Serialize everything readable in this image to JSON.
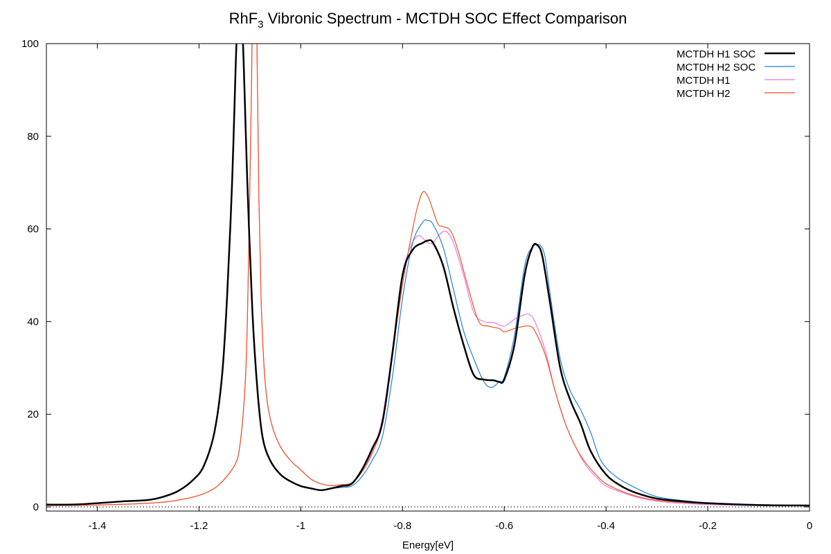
{
  "chart_data": {
    "type": "line",
    "title": "RhF",
    "title_subscript": "3",
    "title_rest": " Vibronic Spectrum - MCTDH SOC Effect Comparison",
    "xlabel": "Energy[eV]",
    "ylabel": "",
    "xlim": [
      -1.5,
      0
    ],
    "ylim": [
      0,
      100
    ],
    "xticks": [
      -1.4,
      -1.2,
      -1,
      -0.8,
      -0.6,
      -0.4,
      -0.2,
      0
    ],
    "xtick_labels": [
      "-1.4",
      "-1.2",
      "-1",
      "-0.8",
      "-0.6",
      "-0.4",
      "-0.2",
      "0"
    ],
    "yticks": [
      0,
      20,
      40,
      60,
      80,
      100
    ],
    "ytick_labels": [
      "0",
      "20",
      "40",
      "60",
      "80",
      "100"
    ],
    "zero_line": "dotted",
    "grid": false,
    "legend_position": "top-right",
    "series": [
      {
        "name": "MCTDH H1 SOC",
        "color": "#000000",
        "width": 2.5,
        "points": [
          [
            -1.5,
            0.5
          ],
          [
            -1.45,
            0.5
          ],
          [
            -1.4,
            0.8
          ],
          [
            -1.35,
            1.2
          ],
          [
            -1.3,
            1.5
          ],
          [
            -1.27,
            2.2
          ],
          [
            -1.24,
            3.5
          ],
          [
            -1.21,
            6
          ],
          [
            -1.19,
            9
          ],
          [
            -1.17,
            16
          ],
          [
            -1.155,
            28
          ],
          [
            -1.145,
            45
          ],
          [
            -1.135,
            70
          ],
          [
            -1.128,
            95
          ],
          [
            -1.122,
            112
          ],
          [
            -1.118,
            112
          ],
          [
            -1.112,
            95
          ],
          [
            -1.105,
            70
          ],
          [
            -1.095,
            42
          ],
          [
            -1.085,
            25
          ],
          [
            -1.075,
            15
          ],
          [
            -1.06,
            10
          ],
          [
            -1.04,
            7
          ],
          [
            -1.02,
            5.5
          ],
          [
            -1,
            4.5
          ],
          [
            -0.98,
            4
          ],
          [
            -0.96,
            3.6
          ],
          [
            -0.94,
            4
          ],
          [
            -0.92,
            4.5
          ],
          [
            -0.9,
            5
          ],
          [
            -0.88,
            8
          ],
          [
            -0.86,
            12.5
          ],
          [
            -0.84,
            18
          ],
          [
            -0.82,
            33
          ],
          [
            -0.8,
            50
          ],
          [
            -0.78,
            55.5
          ],
          [
            -0.76,
            57
          ],
          [
            -0.75,
            57.5
          ],
          [
            -0.74,
            57
          ],
          [
            -0.72,
            52
          ],
          [
            -0.7,
            43
          ],
          [
            -0.68,
            35
          ],
          [
            -0.66,
            28.5
          ],
          [
            -0.64,
            27.5
          ],
          [
            -0.62,
            27.3
          ],
          [
            -0.61,
            27
          ],
          [
            -0.6,
            27.5
          ],
          [
            -0.58,
            35
          ],
          [
            -0.56,
            50
          ],
          [
            -0.545,
            56
          ],
          [
            -0.535,
            56.5
          ],
          [
            -0.525,
            54
          ],
          [
            -0.51,
            44
          ],
          [
            -0.49,
            30
          ],
          [
            -0.47,
            23
          ],
          [
            -0.45,
            18
          ],
          [
            -0.43,
            12
          ],
          [
            -0.4,
            7
          ],
          [
            -0.37,
            4.5
          ],
          [
            -0.34,
            3
          ],
          [
            -0.3,
            1.8
          ],
          [
            -0.25,
            1.2
          ],
          [
            -0.2,
            0.8
          ],
          [
            -0.1,
            0.4
          ],
          [
            0,
            0.3
          ]
        ]
      },
      {
        "name": "MCTDH H2 SOC",
        "color": "#1e7fd8",
        "width": 1.2,
        "points": [
          [
            -1.5,
            0.5
          ],
          [
            -1.45,
            0.5
          ],
          [
            -1.4,
            0.8
          ],
          [
            -1.35,
            1.2
          ],
          [
            -1.3,
            1.5
          ],
          [
            -1.27,
            2.2
          ],
          [
            -1.24,
            3.5
          ],
          [
            -1.21,
            6
          ],
          [
            -1.19,
            9
          ],
          [
            -1.17,
            16
          ],
          [
            -1.155,
            28
          ],
          [
            -1.145,
            45
          ],
          [
            -1.135,
            70
          ],
          [
            -1.128,
            95
          ],
          [
            -1.122,
            112
          ],
          [
            -1.118,
            112
          ],
          [
            -1.112,
            95
          ],
          [
            -1.105,
            70
          ],
          [
            -1.095,
            42
          ],
          [
            -1.085,
            25
          ],
          [
            -1.075,
            15
          ],
          [
            -1.06,
            10
          ],
          [
            -1.04,
            7
          ],
          [
            -1.02,
            5.5
          ],
          [
            -1,
            4.5
          ],
          [
            -0.98,
            4
          ],
          [
            -0.96,
            3.7
          ],
          [
            -0.94,
            4
          ],
          [
            -0.92,
            4.2
          ],
          [
            -0.9,
            4.5
          ],
          [
            -0.88,
            6.5
          ],
          [
            -0.86,
            10
          ],
          [
            -0.84,
            15
          ],
          [
            -0.82,
            28
          ],
          [
            -0.8,
            45
          ],
          [
            -0.78,
            57
          ],
          [
            -0.76,
            61.5
          ],
          [
            -0.75,
            61.8
          ],
          [
            -0.74,
            61
          ],
          [
            -0.72,
            56
          ],
          [
            -0.7,
            47
          ],
          [
            -0.68,
            38
          ],
          [
            -0.66,
            32
          ],
          [
            -0.64,
            27
          ],
          [
            -0.625,
            25.8
          ],
          [
            -0.61,
            27
          ],
          [
            -0.6,
            28
          ],
          [
            -0.58,
            37
          ],
          [
            -0.56,
            52
          ],
          [
            -0.545,
            56
          ],
          [
            -0.53,
            56.5
          ],
          [
            -0.52,
            54
          ],
          [
            -0.51,
            46
          ],
          [
            -0.49,
            32
          ],
          [
            -0.47,
            25
          ],
          [
            -0.45,
            21
          ],
          [
            -0.43,
            16
          ],
          [
            -0.41,
            10
          ],
          [
            -0.38,
            6.5
          ],
          [
            -0.34,
            4
          ],
          [
            -0.3,
            2.2
          ],
          [
            -0.25,
            1.4
          ],
          [
            -0.2,
            0.9
          ],
          [
            -0.1,
            0.5
          ],
          [
            0,
            0.3
          ]
        ]
      },
      {
        "name": "MCTDH H1",
        "color": "#e879e8",
        "width": 1.2,
        "points": [
          [
            -1.5,
            0.3
          ],
          [
            -1.4,
            0.4
          ],
          [
            -1.3,
            0.8
          ],
          [
            -1.25,
            1.3
          ],
          [
            -1.2,
            2.5
          ],
          [
            -1.17,
            4
          ],
          [
            -1.15,
            6
          ],
          [
            -1.13,
            9
          ],
          [
            -1.12,
            13
          ],
          [
            -1.11,
            25
          ],
          [
            -1.105,
            40
          ],
          [
            -1.1,
            70
          ],
          [
            -1.097,
            90
          ],
          [
            -1.094,
            110
          ],
          [
            -1.088,
            110
          ],
          [
            -1.085,
            90
          ],
          [
            -1.082,
            65
          ],
          [
            -1.078,
            45
          ],
          [
            -1.072,
            30
          ],
          [
            -1.065,
            22
          ],
          [
            -1.055,
            17
          ],
          [
            -1.04,
            13
          ],
          [
            -1.02,
            10
          ],
          [
            -1,
            8
          ],
          [
            -0.98,
            6
          ],
          [
            -0.96,
            5
          ],
          [
            -0.94,
            4.6
          ],
          [
            -0.92,
            4.8
          ],
          [
            -0.9,
            5.2
          ],
          [
            -0.88,
            7.5
          ],
          [
            -0.86,
            12
          ],
          [
            -0.84,
            19
          ],
          [
            -0.82,
            34
          ],
          [
            -0.8,
            50
          ],
          [
            -0.785,
            56
          ],
          [
            -0.77,
            58.5
          ],
          [
            -0.76,
            58
          ],
          [
            -0.75,
            57
          ],
          [
            -0.74,
            57
          ],
          [
            -0.73,
            58.5
          ],
          [
            -0.715,
            59.5
          ],
          [
            -0.7,
            57
          ],
          [
            -0.68,
            50
          ],
          [
            -0.66,
            42
          ],
          [
            -0.64,
            40
          ],
          [
            -0.62,
            39.8
          ],
          [
            -0.6,
            39
          ],
          [
            -0.58,
            40.5
          ],
          [
            -0.56,
            41.5
          ],
          [
            -0.55,
            41.5
          ],
          [
            -0.54,
            40
          ],
          [
            -0.52,
            34
          ],
          [
            -0.5,
            25
          ],
          [
            -0.48,
            18
          ],
          [
            -0.46,
            13
          ],
          [
            -0.44,
            9
          ],
          [
            -0.42,
            6.5
          ],
          [
            -0.4,
            4.5
          ],
          [
            -0.36,
            2.8
          ],
          [
            -0.32,
            1.6
          ],
          [
            -0.28,
            1
          ],
          [
            -0.2,
            0.5
          ],
          [
            -0.1,
            0.3
          ],
          [
            0,
            0.2
          ]
        ]
      },
      {
        "name": "MCTDH H2",
        "color": "#f0501a",
        "width": 1.2,
        "points": [
          [
            -1.5,
            0.3
          ],
          [
            -1.4,
            0.4
          ],
          [
            -1.3,
            0.8
          ],
          [
            -1.25,
            1.3
          ],
          [
            -1.2,
            2.5
          ],
          [
            -1.17,
            4
          ],
          [
            -1.15,
            6
          ],
          [
            -1.13,
            9
          ],
          [
            -1.12,
            13
          ],
          [
            -1.11,
            25
          ],
          [
            -1.105,
            40
          ],
          [
            -1.1,
            70
          ],
          [
            -1.097,
            90
          ],
          [
            -1.094,
            110
          ],
          [
            -1.088,
            110
          ],
          [
            -1.085,
            90
          ],
          [
            -1.082,
            65
          ],
          [
            -1.078,
            45
          ],
          [
            -1.072,
            30
          ],
          [
            -1.065,
            22
          ],
          [
            -1.055,
            17
          ],
          [
            -1.04,
            13
          ],
          [
            -1.02,
            10
          ],
          [
            -1,
            8
          ],
          [
            -0.98,
            6
          ],
          [
            -0.96,
            5
          ],
          [
            -0.94,
            4.6
          ],
          [
            -0.92,
            4.8
          ],
          [
            -0.9,
            5.2
          ],
          [
            -0.88,
            7.5
          ],
          [
            -0.86,
            11.5
          ],
          [
            -0.84,
            18
          ],
          [
            -0.82,
            33
          ],
          [
            -0.8,
            48
          ],
          [
            -0.78,
            60
          ],
          [
            -0.77,
            65
          ],
          [
            -0.76,
            68
          ],
          [
            -0.75,
            67
          ],
          [
            -0.74,
            64
          ],
          [
            -0.73,
            61
          ],
          [
            -0.72,
            60.5
          ],
          [
            -0.705,
            59.5
          ],
          [
            -0.69,
            55
          ],
          [
            -0.67,
            47
          ],
          [
            -0.65,
            40
          ],
          [
            -0.63,
            39
          ],
          [
            -0.61,
            38.5
          ],
          [
            -0.6,
            37.8
          ],
          [
            -0.58,
            38.5
          ],
          [
            -0.56,
            39
          ],
          [
            -0.55,
            39
          ],
          [
            -0.54,
            38
          ],
          [
            -0.52,
            33
          ],
          [
            -0.5,
            25
          ],
          [
            -0.48,
            18
          ],
          [
            -0.46,
            13
          ],
          [
            -0.44,
            9.5
          ],
          [
            -0.42,
            7
          ],
          [
            -0.4,
            5
          ],
          [
            -0.36,
            3
          ],
          [
            -0.32,
            1.8
          ],
          [
            -0.28,
            1.2
          ],
          [
            -0.2,
            0.7
          ],
          [
            -0.1,
            0.4
          ],
          [
            0,
            0.3
          ]
        ]
      }
    ]
  }
}
